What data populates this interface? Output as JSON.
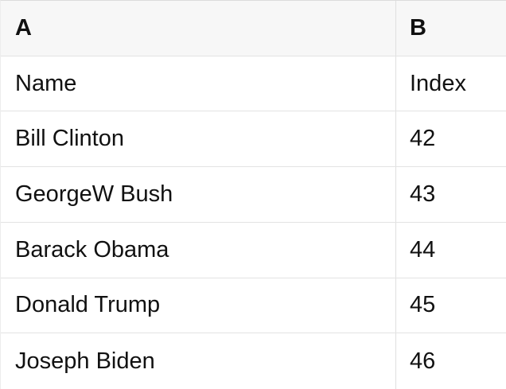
{
  "table": {
    "column_headers": [
      "A",
      "B"
    ],
    "rows": [
      [
        "Name",
        "Index"
      ],
      [
        "Bill Clinton",
        "42"
      ],
      [
        "GeorgeW Bush",
        "43"
      ],
      [
        "Barack Obama",
        "44"
      ],
      [
        "Donald Trump",
        "45"
      ],
      [
        "Joseph Biden",
        "46"
      ]
    ]
  },
  "colors": {
    "header_background": "#f7f7f7",
    "row_background": "#ffffff",
    "border": "#e0e0e0",
    "text": "#111111"
  }
}
